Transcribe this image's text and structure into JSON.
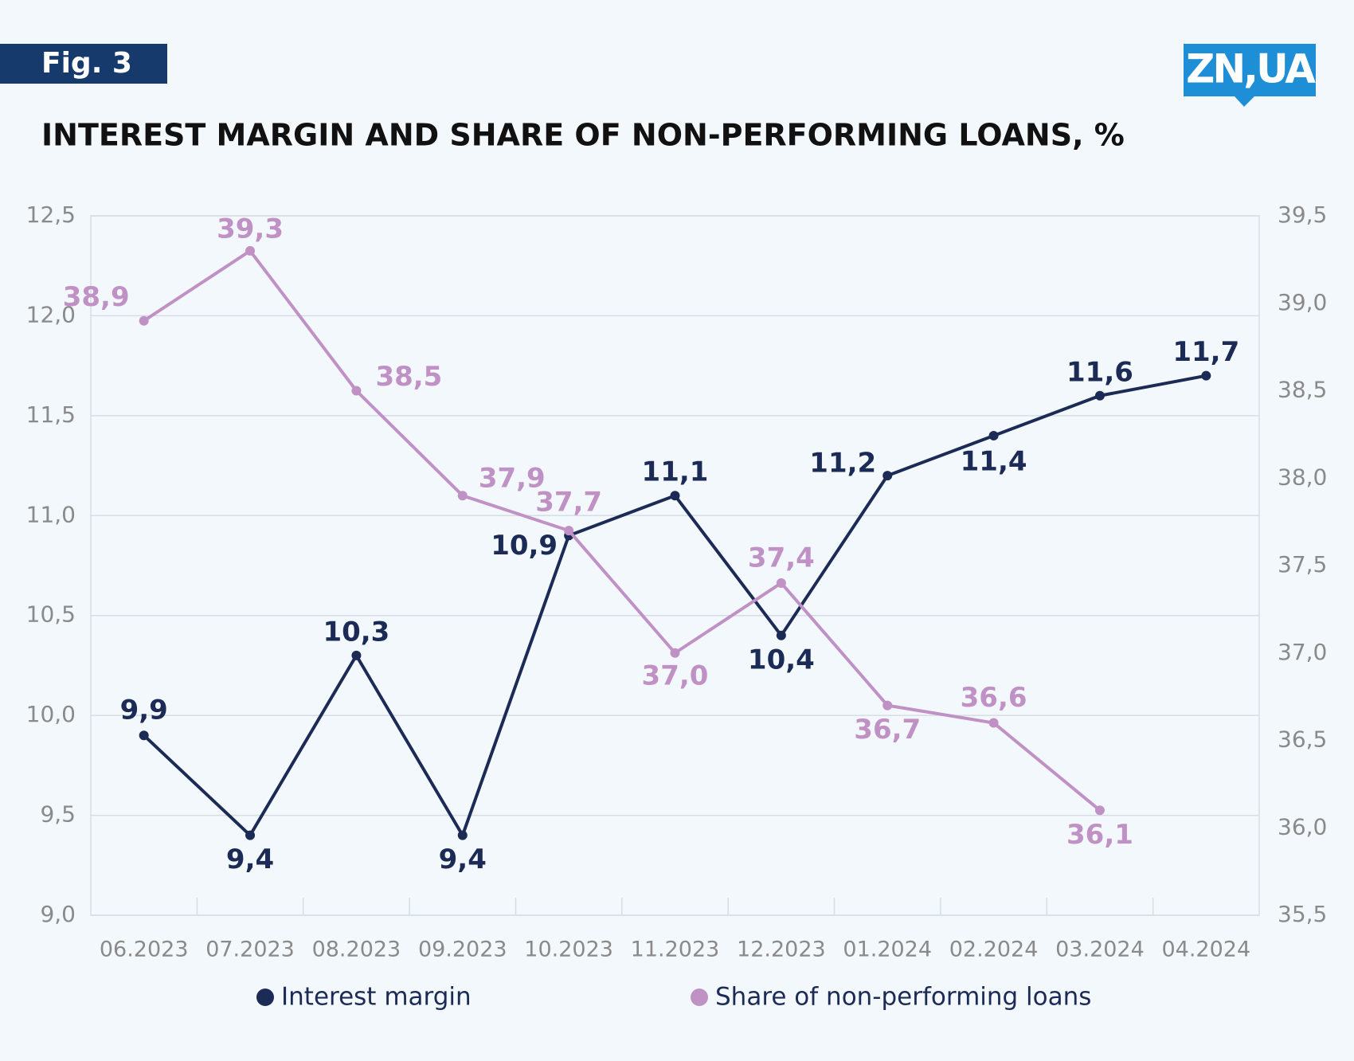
{
  "figure_label": "Fig. 3",
  "logo": "ZN,UA",
  "chart_data": {
    "type": "line",
    "title": "INTEREST MARGIN AND SHARE OF NON-PERFORMING LOANS, %",
    "categories": [
      "06.2023",
      "07.2023",
      "08.2023",
      "09.2023",
      "10.2023",
      "11.2023",
      "12.2023",
      "01.2024",
      "02.2024",
      "03.2024",
      "04.2024"
    ],
    "series": [
      {
        "name": "Interest margin",
        "color": "#1c2b55",
        "axis": "y",
        "values": [
          9.9,
          9.4,
          10.3,
          9.4,
          10.9,
          11.1,
          10.4,
          11.2,
          11.4,
          11.6,
          11.7
        ],
        "value_labels": [
          "9,9",
          "9,4",
          "10,3",
          "9,4",
          "10,9",
          "11,1",
          "10,4",
          "11,2",
          "11,4",
          "11,6",
          "11,7"
        ]
      },
      {
        "name": "Share of non-performing loans",
        "color": "#c091c4",
        "axis": "y2",
        "values": [
          38.9,
          39.3,
          38.5,
          37.9,
          37.7,
          37.0,
          37.4,
          36.7,
          36.6,
          36.1,
          null
        ],
        "value_labels": [
          "38,9",
          "39,3",
          "38,5",
          "37,9",
          "37,7",
          "37,0",
          "37,4",
          "36,7",
          "36,6",
          "36,1",
          null
        ]
      }
    ],
    "ylim": [
      9.0,
      12.5
    ],
    "yticks": [
      {
        "value": 9.0,
        "label": "9,0"
      },
      {
        "value": 9.5,
        "label": "9,5"
      },
      {
        "value": 10.0,
        "label": "10,0"
      },
      {
        "value": 10.5,
        "label": "10,5"
      },
      {
        "value": 11.0,
        "label": "11,0"
      },
      {
        "value": 11.5,
        "label": "11,5"
      },
      {
        "value": 12.0,
        "label": "12,0"
      },
      {
        "value": 12.5,
        "label": "12,5"
      }
    ],
    "y2lim": [
      35.5,
      39.5
    ],
    "y2ticks": [
      {
        "value": 35.5,
        "label": "35,5"
      },
      {
        "value": 36.0,
        "label": "36,0"
      },
      {
        "value": 36.5,
        "label": "36,5"
      },
      {
        "value": 37.0,
        "label": "37,0"
      },
      {
        "value": 37.5,
        "label": "37,5"
      },
      {
        "value": 38.0,
        "label": "38,0"
      },
      {
        "value": 38.5,
        "label": "38,5"
      },
      {
        "value": 39.0,
        "label": "39,0"
      },
      {
        "value": 39.5,
        "label": "39,5"
      }
    ],
    "grid": true
  }
}
